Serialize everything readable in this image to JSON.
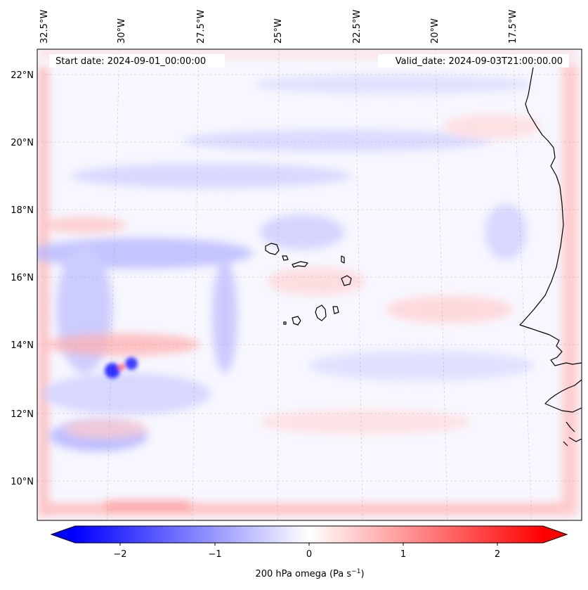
{
  "header": {
    "start_date": "Start date: 2024-09-01_00:00:00",
    "valid_date": "Valid_date: 2024-09-03T21:00:00.00"
  },
  "axes": {
    "lon_labels": [
      "32.5°W",
      "30°W",
      "27.5°W",
      "25°W",
      "22.5°W",
      "20°W",
      "17.5°W"
    ],
    "lat_labels": [
      "22°N",
      "20°N",
      "18°N",
      "16°N",
      "14°N",
      "12°N",
      "10°N"
    ]
  },
  "colorbar": {
    "label_main": "200 hPa omega (Pa s",
    "label_exp": "−1",
    "label_close": ")",
    "ticks": [
      "−2",
      "−1",
      "0",
      "1",
      "2"
    ],
    "vmin": -2.75,
    "vmax": 2.75,
    "color_neg": "#0000ff",
    "color_zero": "#ffffff",
    "color_pos": "#ff0000"
  },
  "map": {
    "field": "200 hPa omega",
    "colormap": "bwr",
    "coastline_color": "#000000"
  }
}
